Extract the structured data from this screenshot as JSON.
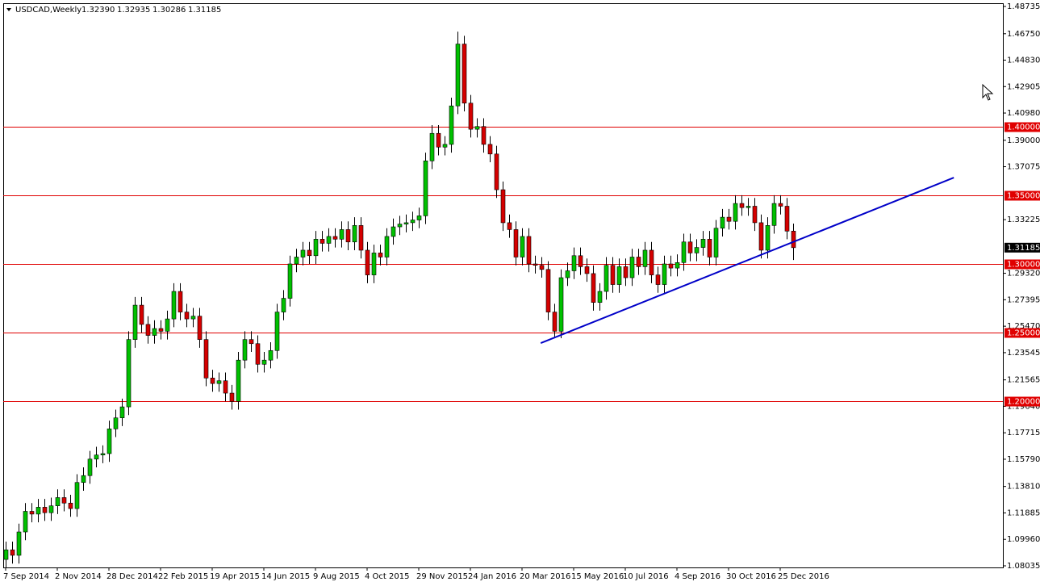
{
  "chart_data": {
    "type": "candlestick",
    "title": "USDCAD,Weekly",
    "header_values": [
      "1.32390",
      "1.32935",
      "1.30286",
      "1.31185"
    ],
    "last_price_label": "1.31185",
    "categories": [
      "7 Sep 2014",
      null,
      null,
      null,
      null,
      null,
      null,
      null,
      "2 Nov 2014",
      null,
      null,
      null,
      null,
      null,
      null,
      null,
      "28 Dec 2014",
      null,
      null,
      null,
      null,
      null,
      null,
      null,
      "22 Feb 2015",
      null,
      null,
      null,
      null,
      null,
      null,
      null,
      "19 Apr 2015",
      null,
      null,
      null,
      null,
      null,
      null,
      null,
      "14 Jun 2015",
      null,
      null,
      null,
      null,
      null,
      null,
      null,
      "9 Aug 2015",
      null,
      null,
      null,
      null,
      null,
      null,
      null,
      "4 Oct 2015",
      null,
      null,
      null,
      null,
      null,
      null,
      null,
      "29 Nov 2015",
      null,
      null,
      null,
      null,
      null,
      null,
      null,
      "24 Jan 2016",
      null,
      null,
      null,
      null,
      null,
      null,
      null,
      "20 Mar 2016",
      null,
      null,
      null,
      null,
      null,
      null,
      null,
      "15 May 2016",
      null,
      null,
      null,
      null,
      null,
      null,
      null,
      "10 Jul 2016",
      null,
      null,
      null,
      null,
      null,
      null,
      null,
      "4 Sep 2016",
      null,
      null,
      null,
      null,
      null,
      null,
      null,
      "30 Oct 2016",
      null,
      null,
      null,
      null,
      null,
      null,
      null,
      "25 Dec 2016",
      null,
      null
    ],
    "open": [
      1.085,
      1.092,
      1.088,
      1.105,
      1.12,
      1.118,
      1.123,
      1.119,
      1.124,
      1.13,
      1.126,
      1.122,
      1.141,
      1.146,
      1.158,
      1.161,
      1.162,
      1.18,
      1.188,
      1.196,
      1.245,
      1.27,
      1.256,
      1.248,
      1.253,
      1.251,
      1.26,
      1.28,
      1.265,
      1.26,
      1.262,
      1.245,
      1.217,
      1.213,
      1.215,
      1.206,
      1.2,
      1.23,
      1.245,
      1.242,
      1.227,
      1.23,
      1.237,
      1.265,
      1.275,
      1.3,
      1.305,
      1.31,
      1.306,
      1.318,
      1.315,
      1.32,
      1.318,
      1.325,
      1.316,
      1.328,
      1.31,
      1.292,
      1.308,
      1.305,
      1.32,
      1.327,
      1.329,
      1.33,
      1.332,
      1.335,
      1.375,
      1.395,
      1.385,
      1.387,
      1.415,
      1.46,
      1.417,
      1.398,
      1.4,
      1.387,
      1.38,
      1.354,
      1.33,
      1.325,
      1.305,
      1.32,
      1.3,
      1.299,
      1.296,
      1.265,
      1.251,
      1.29,
      1.295,
      1.306,
      1.298,
      1.293,
      1.272,
      1.28,
      1.299,
      1.285,
      1.298,
      1.29,
      1.305,
      1.298,
      1.31,
      1.292,
      1.285,
      1.3,
      1.297,
      1.301,
      1.316,
      1.308,
      1.312,
      1.318,
      1.305,
      1.326,
      1.334,
      1.331,
      1.344,
      1.341,
      1.342,
      1.33,
      1.31,
      1.328,
      1.344,
      1.342,
      1.3239
    ],
    "high": [
      1.098,
      1.098,
      1.111,
      1.126,
      1.126,
      1.129,
      1.129,
      1.13,
      1.136,
      1.136,
      1.132,
      1.147,
      1.152,
      1.164,
      1.167,
      1.168,
      1.186,
      1.194,
      1.202,
      1.251,
      1.276,
      1.276,
      1.262,
      1.259,
      1.259,
      1.266,
      1.286,
      1.286,
      1.271,
      1.268,
      1.268,
      1.251,
      1.223,
      1.221,
      1.221,
      1.212,
      1.236,
      1.251,
      1.251,
      1.248,
      1.236,
      1.243,
      1.271,
      1.281,
      1.306,
      1.311,
      1.316,
      1.316,
      1.324,
      1.324,
      1.326,
      1.326,
      1.331,
      1.331,
      1.334,
      1.334,
      1.316,
      1.314,
      1.314,
      1.326,
      1.333,
      1.335,
      1.336,
      1.338,
      1.341,
      1.381,
      1.401,
      1.401,
      1.393,
      1.421,
      1.469,
      1.466,
      1.423,
      1.406,
      1.406,
      1.393,
      1.386,
      1.36,
      1.336,
      1.331,
      1.326,
      1.326,
      1.306,
      1.305,
      1.302,
      1.271,
      1.296,
      1.301,
      1.312,
      1.312,
      1.304,
      1.299,
      1.286,
      1.305,
      1.305,
      1.304,
      1.304,
      1.311,
      1.311,
      1.316,
      1.316,
      1.298,
      1.306,
      1.306,
      1.307,
      1.322,
      1.322,
      1.318,
      1.324,
      1.324,
      1.332,
      1.34,
      1.34,
      1.35,
      1.35,
      1.348,
      1.348,
      1.336,
      1.334,
      1.35,
      1.35,
      1.348,
      1.32935
    ],
    "low": [
      1.079,
      1.082,
      1.082,
      1.099,
      1.112,
      1.112,
      1.113,
      1.113,
      1.118,
      1.12,
      1.116,
      1.116,
      1.135,
      1.14,
      1.152,
      1.155,
      1.156,
      1.174,
      1.182,
      1.19,
      1.239,
      1.25,
      1.242,
      1.242,
      1.245,
      1.245,
      1.254,
      1.259,
      1.254,
      1.254,
      1.239,
      1.211,
      1.207,
      1.207,
      1.2,
      1.194,
      1.194,
      1.224,
      1.236,
      1.221,
      1.221,
      1.224,
      1.231,
      1.259,
      1.269,
      1.294,
      1.299,
      1.3,
      1.3,
      1.309,
      1.309,
      1.312,
      1.312,
      1.31,
      1.31,
      1.304,
      1.286,
      1.286,
      1.299,
      1.299,
      1.314,
      1.321,
      1.323,
      1.324,
      1.326,
      1.329,
      1.369,
      1.379,
      1.379,
      1.381,
      1.409,
      1.411,
      1.392,
      1.392,
      1.381,
      1.374,
      1.348,
      1.324,
      1.319,
      1.299,
      1.299,
      1.294,
      1.293,
      1.29,
      1.259,
      1.246,
      1.246,
      1.284,
      1.289,
      1.292,
      1.287,
      1.266,
      1.266,
      1.274,
      1.279,
      1.279,
      1.284,
      1.284,
      1.292,
      1.292,
      1.286,
      1.279,
      1.279,
      1.291,
      1.291,
      1.295,
      1.302,
      1.302,
      1.306,
      1.299,
      1.299,
      1.32,
      1.325,
      1.325,
      1.335,
      1.335,
      1.324,
      1.304,
      1.304,
      1.322,
      1.336,
      1.318,
      1.30286
    ],
    "close": [
      1.092,
      1.088,
      1.105,
      1.12,
      1.118,
      1.123,
      1.119,
      1.124,
      1.13,
      1.126,
      1.122,
      1.141,
      1.146,
      1.158,
      1.161,
      1.162,
      1.18,
      1.188,
      1.196,
      1.245,
      1.27,
      1.256,
      1.248,
      1.253,
      1.251,
      1.26,
      1.28,
      1.265,
      1.26,
      1.262,
      1.245,
      1.217,
      1.213,
      1.215,
      1.206,
      1.2,
      1.23,
      1.245,
      1.242,
      1.227,
      1.23,
      1.237,
      1.265,
      1.275,
      1.3,
      1.305,
      1.31,
      1.306,
      1.318,
      1.315,
      1.32,
      1.318,
      1.325,
      1.316,
      1.328,
      1.31,
      1.292,
      1.308,
      1.305,
      1.32,
      1.327,
      1.329,
      1.33,
      1.332,
      1.335,
      1.375,
      1.395,
      1.385,
      1.387,
      1.415,
      1.46,
      1.417,
      1.398,
      1.4,
      1.387,
      1.38,
      1.354,
      1.33,
      1.325,
      1.305,
      1.32,
      1.3,
      1.299,
      1.296,
      1.265,
      1.251,
      1.29,
      1.295,
      1.306,
      1.298,
      1.293,
      1.272,
      1.28,
      1.299,
      1.285,
      1.298,
      1.29,
      1.305,
      1.298,
      1.31,
      1.292,
      1.285,
      1.3,
      1.297,
      1.301,
      1.316,
      1.308,
      1.312,
      1.318,
      1.305,
      1.326,
      1.334,
      1.331,
      1.344,
      1.341,
      1.342,
      1.33,
      1.31,
      1.328,
      1.344,
      1.342,
      1.3239,
      1.31185
    ],
    "up_color": "#00c000",
    "down_color": "#d40000",
    "ylim": [
      1.08035,
      1.48735
    ],
    "yticks": [
      1.48735,
      {
        "value": 1.4675,
        "label": "1.46750"
      },
      {
        "value": 1.4483,
        "label": "1.44830"
      },
      1.42905,
      {
        "value": 1.4098,
        "label": "1.40980"
      },
      {
        "value": 1.39,
        "label": "1.39000"
      },
      1.37075,
      1.33225,
      {
        "value": 1.2932,
        "label": "1.29320"
      },
      1.27395,
      {
        "value": 1.2547,
        "label": "1.25470"
      },
      1.23545,
      1.21565,
      {
        "value": 1.1964,
        "label": "1.19640"
      },
      1.17715,
      {
        "value": 1.1579,
        "label": "1.15790"
      },
      {
        "value": 1.1381,
        "label": "1.13810"
      },
      1.11885,
      {
        "value": 1.0996,
        "label": "1.09960"
      },
      1.08035
    ],
    "levels": [
      {
        "value": 1.4,
        "label": "1.40000"
      },
      {
        "value": 1.35,
        "label": "1.35000"
      },
      {
        "value": 1.3,
        "label": "1.30000"
      },
      {
        "value": 1.25,
        "label": "1.25000"
      },
      {
        "value": 1.2,
        "label": "1.20000"
      }
    ],
    "level_color": "#e00000",
    "trendline": {
      "color": "#0000c8",
      "points": [
        [
          82.9,
          1.2424
        ],
        [
          146.9,
          1.3628
        ]
      ]
    }
  }
}
